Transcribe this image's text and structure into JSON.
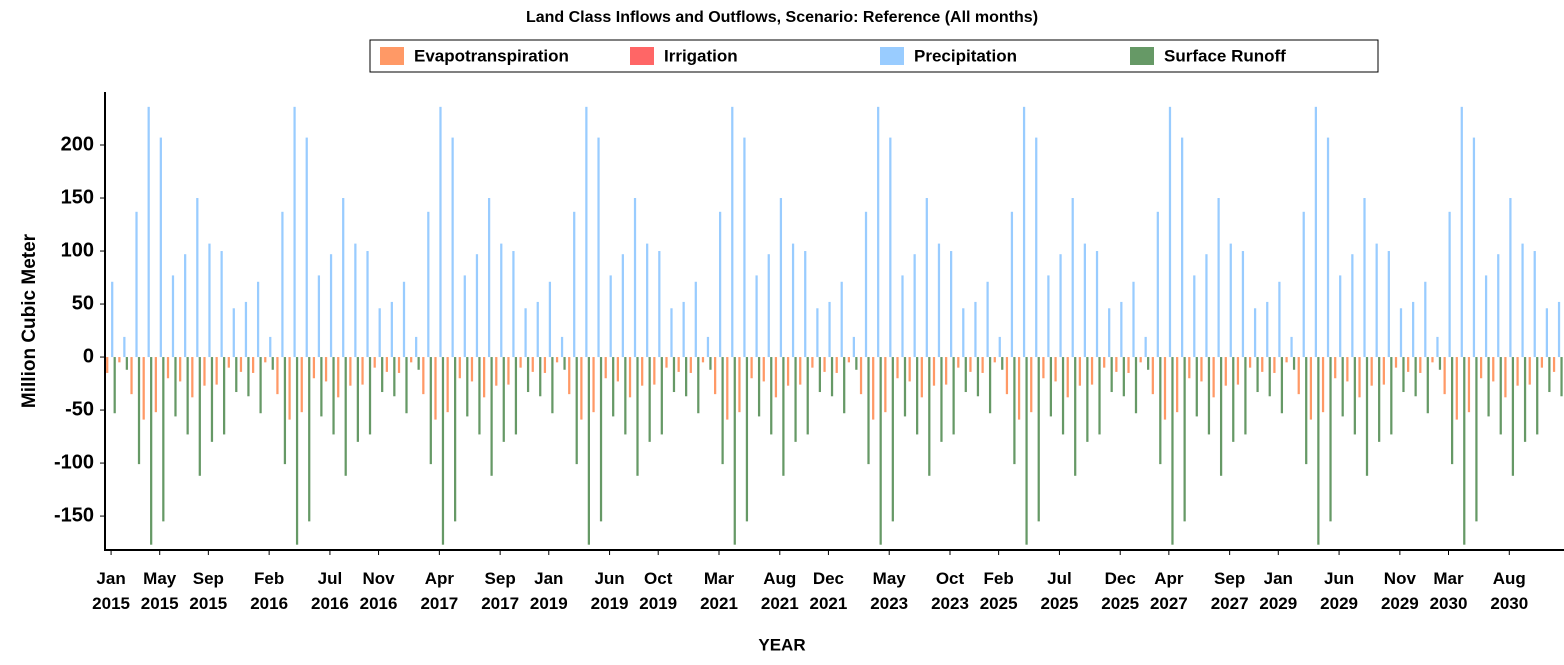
{
  "chart_data": {
    "type": "bar",
    "title": "Land Class Inflows and Outflows, Scenario: Reference (All months)",
    "x_label": "YEAR",
    "y_label": "Million Cubic Meter",
    "categories": [
      "Jan 2015",
      null,
      null,
      null,
      "May 2015",
      null,
      null,
      null,
      "Sep 2015",
      null,
      null,
      null,
      null,
      "Feb 2016",
      null,
      null,
      null,
      null,
      "Jul 2016",
      null,
      null,
      null,
      "Nov 2016",
      null,
      null,
      null,
      null,
      "Apr 2017",
      null,
      null,
      null,
      null,
      "Sep 2017",
      null,
      null,
      null,
      "Jan 2019",
      null,
      null,
      null,
      null,
      "Jun 2019",
      null,
      null,
      null,
      "Oct 2019",
      null,
      null,
      null,
      null,
      "Mar 2021",
      null,
      null,
      null,
      null,
      "Aug 2021",
      null,
      null,
      null,
      "Dec 2021",
      null,
      null,
      null,
      null,
      "May 2023",
      null,
      null,
      null,
      null,
      "Oct 2023",
      null,
      null,
      null,
      "Feb 2025",
      null,
      null,
      null,
      null,
      "Jul 2025",
      null,
      null,
      null,
      null,
      "Dec 2025",
      null,
      null,
      null,
      "Apr 2027",
      null,
      null,
      null,
      null,
      "Sep 2027",
      null,
      null,
      null,
      "Jan 2029",
      null,
      null,
      null,
      null,
      "Jun 2029",
      null,
      null,
      null,
      null,
      "Nov 2029",
      null,
      null,
      null,
      "Mar 2030",
      null,
      null,
      null,
      null,
      "Aug 2030",
      null,
      null,
      null,
      null
    ],
    "series": [
      {
        "name": "Evapotranspiration",
        "color": "#ff9966",
        "values": [
          -15,
          -5,
          -35,
          -59,
          -52,
          -20,
          -23,
          -38,
          -27,
          -26,
          -10,
          -14,
          -15,
          -5,
          -35,
          -59,
          -52,
          -20,
          -23,
          -38,
          -27,
          -26,
          -10,
          -14,
          -15,
          -5,
          -35,
          -59,
          -52,
          -20,
          -23,
          -38,
          -27,
          -26,
          -10,
          -14,
          -15,
          -5,
          -35,
          -59,
          -52,
          -20,
          -23,
          -38,
          -27,
          -26,
          -10,
          -14,
          -15,
          -5,
          -35,
          -59,
          -52,
          -20,
          -23,
          -38,
          -27,
          -26,
          -10,
          -14,
          -15,
          -5,
          -35,
          -59,
          -52,
          -20,
          -23,
          -38,
          -27,
          -26,
          -10,
          -14,
          -15,
          -5,
          -35,
          -59,
          -52,
          -20,
          -23,
          -38,
          -27,
          -26,
          -10,
          -14,
          -15,
          -5,
          -35,
          -59,
          -52,
          -20,
          -23,
          -38,
          -27,
          -26,
          -10,
          -14,
          -15,
          -5,
          -35,
          -59,
          -52,
          -20,
          -23,
          -38,
          -27,
          -26,
          -10,
          -14,
          -15,
          -5,
          -35,
          -59,
          -52,
          -20,
          -23,
          -38,
          -27,
          -26,
          -10,
          -14
        ]
      },
      {
        "name": "Irrigation",
        "color": "#ff6666",
        "values": [
          0,
          0,
          0,
          0,
          0,
          0,
          0,
          0,
          0,
          0,
          0,
          0,
          0,
          0,
          0,
          0,
          0,
          0,
          0,
          0,
          0,
          0,
          0,
          0,
          0,
          0,
          0,
          0,
          0,
          0,
          0,
          0,
          0,
          0,
          0,
          0,
          0,
          0,
          0,
          0,
          0,
          0,
          0,
          0,
          0,
          0,
          0,
          0,
          0,
          0,
          0,
          0,
          0,
          0,
          0,
          0,
          0,
          0,
          0,
          0,
          0,
          0,
          0,
          0,
          0,
          0,
          0,
          0,
          0,
          0,
          0,
          0,
          0,
          0,
          0,
          0,
          0,
          0,
          0,
          0,
          0,
          0,
          0,
          0,
          0,
          0,
          0,
          0,
          0,
          0,
          0,
          0,
          0,
          0,
          0,
          0,
          0,
          0,
          0,
          0,
          0,
          0,
          0,
          0,
          0,
          0,
          0,
          0,
          0,
          0,
          0,
          0,
          0,
          0,
          0,
          0,
          0,
          0,
          0,
          0
        ]
      },
      {
        "name": "Precipitation",
        "color": "#99ccff",
        "values": [
          71,
          19,
          137,
          236,
          207,
          77,
          97,
          150,
          107,
          100,
          46,
          52,
          71,
          19,
          137,
          236,
          207,
          77,
          97,
          150,
          107,
          100,
          46,
          52,
          71,
          19,
          137,
          236,
          207,
          77,
          97,
          150,
          107,
          100,
          46,
          52,
          71,
          19,
          137,
          236,
          207,
          77,
          97,
          150,
          107,
          100,
          46,
          52,
          71,
          19,
          137,
          236,
          207,
          77,
          97,
          150,
          107,
          100,
          46,
          52,
          71,
          19,
          137,
          236,
          207,
          77,
          97,
          150,
          107,
          100,
          46,
          52,
          71,
          19,
          137,
          236,
          207,
          77,
          97,
          150,
          107,
          100,
          46,
          52,
          71,
          19,
          137,
          236,
          207,
          77,
          97,
          150,
          107,
          100,
          46,
          52,
          71,
          19,
          137,
          236,
          207,
          77,
          97,
          150,
          107,
          100,
          46,
          52,
          71,
          19,
          137,
          236,
          207,
          77,
          97,
          150,
          107,
          100,
          46,
          52
        ]
      },
      {
        "name": "Surface Runoff",
        "color": "#669966",
        "values": [
          -53,
          -12,
          -101,
          -177,
          -155,
          -56,
          -73,
          -112,
          -80,
          -73,
          -33,
          -37,
          -53,
          -12,
          -101,
          -177,
          -155,
          -56,
          -73,
          -112,
          -80,
          -73,
          -33,
          -37,
          -53,
          -12,
          -101,
          -177,
          -155,
          -56,
          -73,
          -112,
          -80,
          -73,
          -33,
          -37,
          -53,
          -12,
          -101,
          -177,
          -155,
          -56,
          -73,
          -112,
          -80,
          -73,
          -33,
          -37,
          -53,
          -12,
          -101,
          -177,
          -155,
          -56,
          -73,
          -112,
          -80,
          -73,
          -33,
          -37,
          -53,
          -12,
          -101,
          -177,
          -155,
          -56,
          -73,
          -112,
          -80,
          -73,
          -33,
          -37,
          -53,
          -12,
          -101,
          -177,
          -155,
          -56,
          -73,
          -112,
          -80,
          -73,
          -33,
          -37,
          -53,
          -12,
          -101,
          -177,
          -155,
          -56,
          -73,
          -112,
          -80,
          -73,
          -33,
          -37,
          -53,
          -12,
          -101,
          -177,
          -155,
          -56,
          -73,
          -112,
          -80,
          -73,
          -33,
          -37,
          -53,
          -12,
          -101,
          -177,
          -155,
          -56,
          -73,
          -112,
          -80,
          -73,
          -33,
          -37
        ]
      }
    ],
    "ylim": [
      -182,
      250
    ],
    "yticks": [
      -150,
      -100,
      -50,
      0,
      50,
      100,
      150,
      200
    ],
    "grid": false,
    "legend": "top"
  }
}
